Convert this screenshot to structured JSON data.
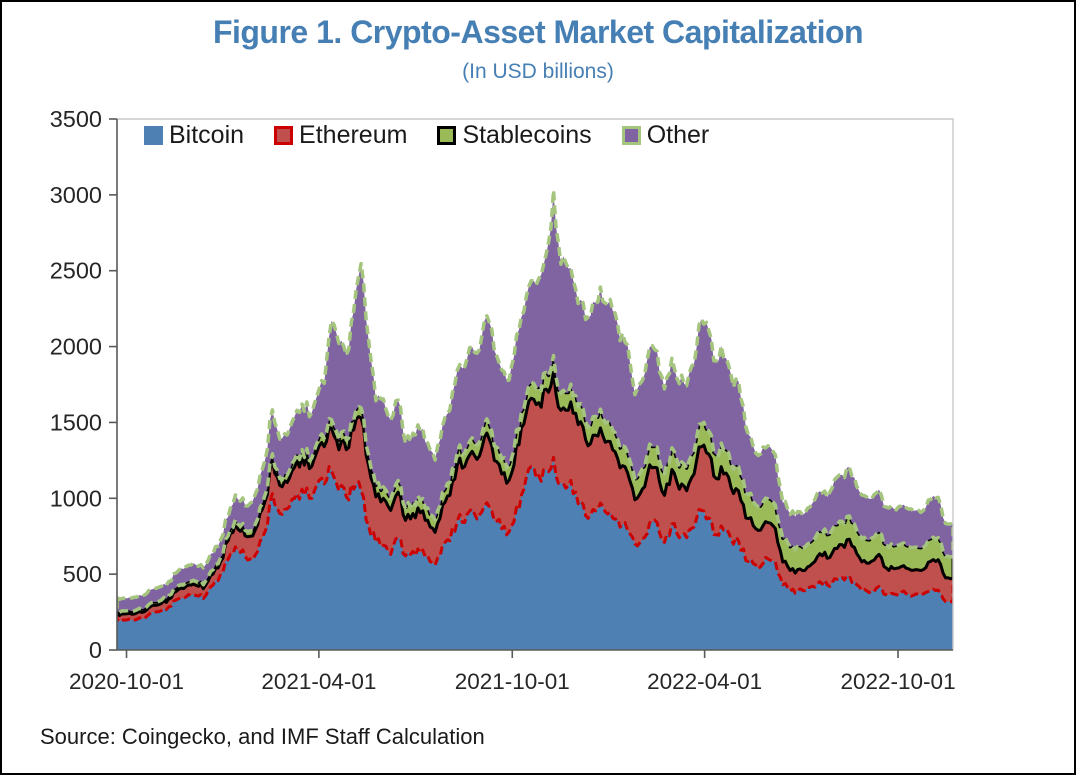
{
  "figure": {
    "title": "Figure 1. Crypto-Asset Market Capitalization",
    "subtitle": "(In USD billions)",
    "source_note": "Source: Coingecko, and IMF Staff Calculation"
  },
  "colors": {
    "title_blue": "#467FB4",
    "axis_line": "#595959",
    "plot_border": "#C9C9C9",
    "tick_label": "#262626"
  },
  "chart_data": {
    "type": "area",
    "stacked": true,
    "title": "Figure 1. Crypto-Asset Market Capitalization",
    "subtitle": "(In USD billions)",
    "ylabel": "",
    "xlabel": "",
    "ylim": [
      0,
      3500
    ],
    "y_ticks": [
      0,
      500,
      1000,
      1500,
      2000,
      2500,
      3000,
      3500
    ],
    "x_tick_labels": [
      "2020-10-01",
      "2021-04-01",
      "2021-10-01",
      "2022-04-01",
      "2022-10-01"
    ],
    "grid": false,
    "legend_position": "top-left-inside",
    "units": "USD billions",
    "dates": [
      "2020-09-22",
      "2020-09-29",
      "2020-10-06",
      "2020-10-13",
      "2020-10-20",
      "2020-10-27",
      "2020-11-03",
      "2020-11-10",
      "2020-11-17",
      "2020-11-24",
      "2020-12-01",
      "2020-12-08",
      "2020-12-15",
      "2020-12-22",
      "2020-12-29",
      "2021-01-05",
      "2021-01-12",
      "2021-01-19",
      "2021-01-26",
      "2021-02-02",
      "2021-02-09",
      "2021-02-16",
      "2021-02-23",
      "2021-03-02",
      "2021-03-09",
      "2021-03-16",
      "2021-03-23",
      "2021-03-30",
      "2021-04-06",
      "2021-04-13",
      "2021-04-20",
      "2021-04-27",
      "2021-05-04",
      "2021-05-11",
      "2021-05-18",
      "2021-05-25",
      "2021-06-01",
      "2021-06-08",
      "2021-06-15",
      "2021-06-22",
      "2021-06-29",
      "2021-07-06",
      "2021-07-13",
      "2021-07-20",
      "2021-07-27",
      "2021-08-03",
      "2021-08-10",
      "2021-08-17",
      "2021-08-24",
      "2021-08-31",
      "2021-09-07",
      "2021-09-14",
      "2021-09-21",
      "2021-09-28",
      "2021-10-05",
      "2021-10-12",
      "2021-10-19",
      "2021-10-26",
      "2021-11-02",
      "2021-11-09",
      "2021-11-16",
      "2021-11-23",
      "2021-11-30",
      "2021-12-07",
      "2021-12-14",
      "2021-12-21",
      "2021-12-28",
      "2022-01-04",
      "2022-01-11",
      "2022-01-18",
      "2022-01-25",
      "2022-02-01",
      "2022-02-08",
      "2022-02-15",
      "2022-02-22",
      "2022-03-01",
      "2022-03-08",
      "2022-03-15",
      "2022-03-22",
      "2022-03-29",
      "2022-04-05",
      "2022-04-12",
      "2022-04-19",
      "2022-04-26",
      "2022-05-03",
      "2022-05-10",
      "2022-05-17",
      "2022-05-24",
      "2022-05-31",
      "2022-06-07",
      "2022-06-14",
      "2022-06-21",
      "2022-06-28",
      "2022-07-05",
      "2022-07-12",
      "2022-07-19",
      "2022-07-26",
      "2022-08-02",
      "2022-08-09",
      "2022-08-16",
      "2022-08-23",
      "2022-08-30",
      "2022-09-06",
      "2022-09-13",
      "2022-09-20",
      "2022-09-27",
      "2022-10-04",
      "2022-10-11",
      "2022-10-18",
      "2022-10-25",
      "2022-11-01",
      "2022-11-08",
      "2022-11-15",
      "2022-11-22"
    ],
    "series": [
      {
        "name": "Bitcoin",
        "fill": "#4E80B4",
        "border": "#4E80B4",
        "values": [
          200,
          197,
          197,
          212,
          220,
          250,
          260,
          285,
          330,
          340,
          360,
          355,
          360,
          430,
          500,
          595,
          680,
          660,
          600,
          650,
          780,
          1030,
          900,
          930,
          1000,
          1060,
          1000,
          1090,
          1095,
          1180,
          1050,
          1010,
          1060,
          1050,
          820,
          710,
          690,
          630,
          740,
          620,
          650,
          640,
          620,
          560,
          690,
          720,
          850,
          840,
          930,
          890,
          970,
          850,
          800,
          780,
          940,
          1060,
          1210,
          1150,
          1190,
          1270,
          1100,
          1080,
          1040,
          960,
          890,
          930,
          910,
          870,
          810,
          790,
          700,
          730,
          840,
          840,
          710,
          830,
          740,
          740,
          810,
          920,
          870,
          760,
          790,
          730,
          720,
          590,
          570,
          550,
          600,
          580,
          430,
          390,
          390,
          390,
          420,
          450,
          430,
          470,
          480,
          490,
          430,
          400,
          390,
          420,
          365,
          370,
          380,
          370,
          370,
          370,
          390,
          395,
          320,
          315
        ]
      },
      {
        "name": "Ethereum",
        "fill": "#C0504D",
        "border": "#CC0000",
        "values": [
          42,
          40,
          39,
          42,
          43,
          45,
          47,
          52,
          56,
          65,
          68,
          65,
          70,
          72,
          82,
          125,
          150,
          140,
          150,
          175,
          200,
          220,
          185,
          175,
          205,
          210,
          195,
          215,
          245,
          280,
          270,
          310,
          390,
          480,
          400,
          300,
          310,
          290,
          300,
          235,
          250,
          265,
          235,
          215,
          265,
          300,
          370,
          370,
          380,
          390,
          460,
          400,
          360,
          340,
          410,
          430,
          450,
          480,
          530,
          560,
          480,
          500,
          520,
          510,
          470,
          480,
          460,
          450,
          390,
          380,
          290,
          330,
          380,
          360,
          310,
          360,
          320,
          310,
          350,
          420,
          420,
          370,
          370,
          340,
          330,
          280,
          250,
          240,
          240,
          220,
          150,
          135,
          140,
          135,
          150,
          185,
          175,
          200,
          215,
          240,
          205,
          190,
          195,
          210,
          175,
          165,
          170,
          165,
          160,
          160,
          195,
          200,
          155,
          160
        ]
      },
      {
        "name": "Stablecoins",
        "fill": "#9BBB59",
        "border": "#000000",
        "values": [
          19,
          20,
          20,
          21,
          21,
          22,
          22,
          23,
          24,
          25,
          25,
          26,
          26,
          27,
          28,
          30,
          32,
          34,
          36,
          38,
          41,
          43,
          45,
          47,
          49,
          51,
          53,
          55,
          57,
          59,
          61,
          63,
          65,
          67,
          70,
          73,
          75,
          76,
          77,
          78,
          79,
          80,
          81,
          82,
          83,
          84,
          85,
          87,
          89,
          91,
          93,
          95,
          97,
          99,
          101,
          103,
          105,
          107,
          109,
          111,
          113,
          115,
          117,
          119,
          121,
          123,
          125,
          127,
          129,
          131,
          133,
          135,
          137,
          139,
          141,
          143,
          145,
          147,
          149,
          151,
          153,
          155,
          157,
          159,
          161,
          160,
          158,
          157,
          156,
          156,
          155,
          154,
          153,
          153,
          152,
          152,
          153,
          153,
          154,
          154,
          153,
          153,
          152,
          152,
          151,
          150,
          149,
          148,
          148,
          147,
          147,
          146,
          144,
          142
        ]
      },
      {
        "name": "Other",
        "fill": "#8064A2",
        "border": "#A5C57F",
        "values": [
          85,
          84,
          86,
          87,
          88,
          88,
          90,
          92,
          98,
          104,
          107,
          106,
          108,
          110,
          116,
          125,
          160,
          168,
          180,
          200,
          230,
          290,
          260,
          265,
          285,
          300,
          290,
          310,
          360,
          650,
          640,
          560,
          720,
          950,
          760,
          560,
          580,
          520,
          530,
          430,
          450,
          460,
          430,
          395,
          440,
          480,
          540,
          570,
          600,
          610,
          680,
          630,
          590,
          560,
          620,
          640,
          670,
          710,
          780,
          1090,
          850,
          820,
          700,
          700,
          720,
          760,
          790,
          790,
          710,
          710,
          560,
          580,
          640,
          630,
          560,
          590,
          550,
          545,
          580,
          690,
          660,
          620,
          610,
          580,
          560,
          440,
          365,
          345,
          350,
          330,
          235,
          215,
          230,
          225,
          245,
          260,
          250,
          300,
          305,
          320,
          290,
          275,
          260,
          275,
          250,
          245,
          250,
          245,
          242,
          243,
          260,
          265,
          215,
          218
        ]
      }
    ]
  }
}
